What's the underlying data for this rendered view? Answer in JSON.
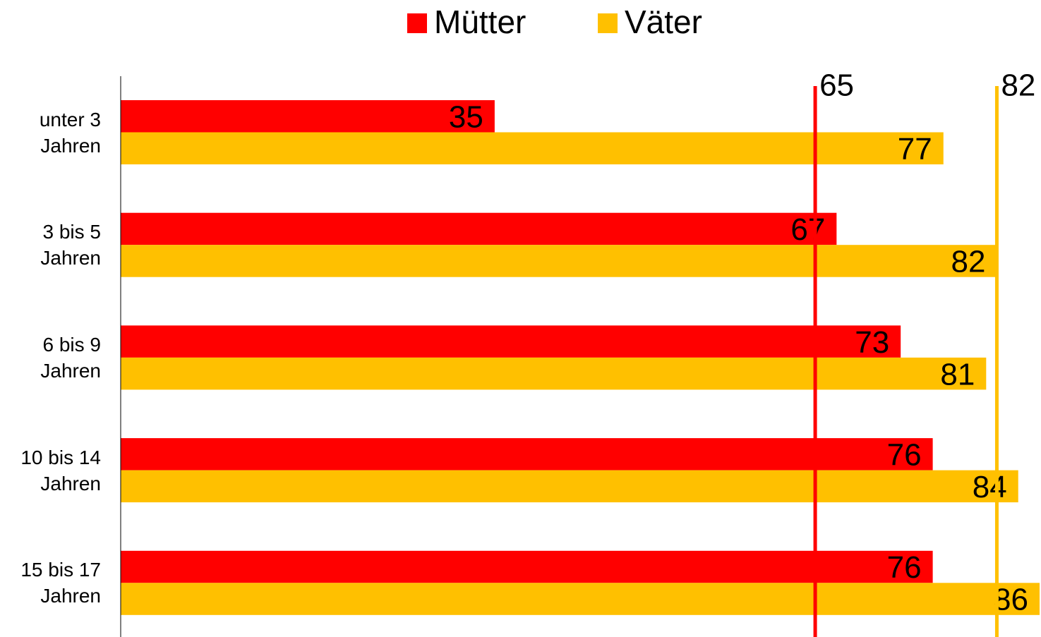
{
  "chart_data": {
    "type": "barh",
    "categories": [
      "unter 3\nJahren",
      "3 bis 5\nJahren",
      "6 bis 9\nJahren",
      "10 bis 14\nJahren",
      "15 bis 17\nJahren"
    ],
    "series": [
      {
        "name": "Mütter",
        "color": "#ff0000",
        "values": [
          35,
          67,
          73,
          76,
          76
        ]
      },
      {
        "name": "Väter",
        "color": "#ffc000",
        "values": [
          77,
          82,
          81,
          84,
          86
        ]
      }
    ],
    "reference_lines": [
      {
        "value": 65,
        "color": "#ff0000"
      },
      {
        "value": 82,
        "color": "#ffc000"
      }
    ],
    "xlim": [
      0,
      86
    ],
    "legend": "top"
  }
}
